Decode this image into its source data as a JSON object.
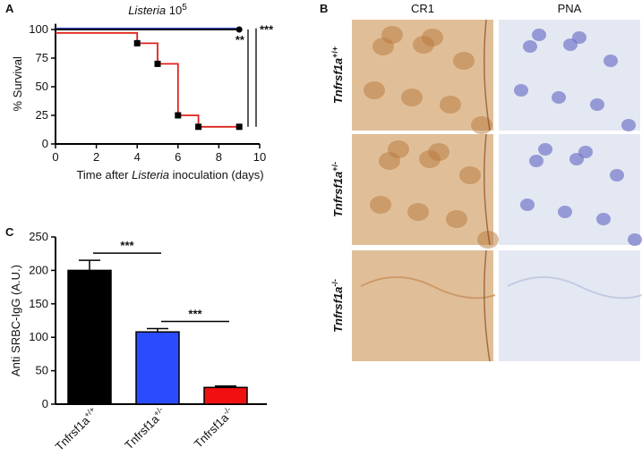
{
  "panel_labels": [
    "A",
    "B",
    "C"
  ],
  "chart_data": [
    {
      "type": "line",
      "step": true,
      "title": {
        "italic": "Listeria",
        "base": "10",
        "exponent": "5"
      },
      "x_label": [
        "Time after ",
        "Listeria",
        " inoculation (days)"
      ],
      "y_label": "% Survival",
      "xlim": [
        0,
        10
      ],
      "xticks": [
        0,
        2,
        4,
        6,
        8,
        10
      ],
      "ylim": [
        0,
        105
      ],
      "yticks": [
        0,
        25,
        50,
        75,
        100
      ],
      "series": [
        {
          "color": "#3b4fc4",
          "x": [
            0,
            9
          ],
          "values": [
            101,
            101
          ]
        },
        {
          "color": "#000000",
          "x": [
            0,
            9
          ],
          "values": [
            100,
            100
          ],
          "marker": "circle"
        },
        {
          "color": "#e0201b",
          "x": [
            0,
            4,
            5,
            6,
            7,
            9
          ],
          "values": [
            97,
            88,
            70,
            25,
            15,
            15
          ],
          "marker": "square"
        }
      ],
      "annotations": [
        {
          "text": "**",
          "from": 100,
          "to": 15
        },
        {
          "text": "***",
          "from": 101,
          "to": 15
        }
      ]
    },
    {
      "type": "bar",
      "y_label": "Anti SRBC-IgG (A.U.)",
      "categories": [
        {
          "gene": "Tnfrsf1a",
          "genotype": "+/+"
        },
        {
          "gene": "Tnfrsf1a",
          "genotype": "+/-"
        },
        {
          "gene": "Tnfrsf1a",
          "genotype": "-/-"
        }
      ],
      "values": [
        200,
        108,
        25
      ],
      "errors": [
        15,
        5,
        2
      ],
      "colors": [
        "#000000",
        "#2b4bff",
        "#f01010"
      ],
      "ylim": [
        0,
        250
      ],
      "yticks": [
        0,
        50,
        100,
        150,
        200,
        250
      ],
      "annotations": [
        {
          "text": "***",
          "between": [
            0,
            1
          ]
        },
        {
          "text": "***",
          "between": [
            1,
            2
          ]
        }
      ]
    }
  ],
  "micrographs": {
    "columns": [
      "CR1",
      "PNA"
    ],
    "rows": [
      {
        "gene": "Tnfrsf1a",
        "genotype": "+/+"
      },
      {
        "gene": "Tnfrsf1a",
        "genotype": "+/-"
      },
      {
        "gene": "Tnfrsf1a",
        "genotype": "-/-"
      }
    ]
  }
}
